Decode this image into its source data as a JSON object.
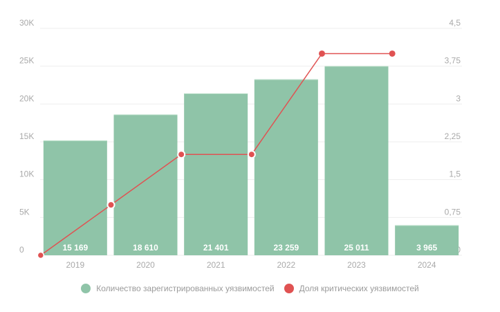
{
  "chart_data": {
    "type": "bar",
    "title": "",
    "categories": [
      "2019",
      "2020",
      "2021",
      "2022",
      "2023",
      "2024"
    ],
    "series": [
      {
        "name": "Количество зарегистрированных уязвимостей",
        "type": "bar",
        "axis": "left",
        "values": [
          15169,
          18610,
          21401,
          23259,
          25011,
          3965
        ],
        "labels": [
          "15 169",
          "18 610",
          "21 401",
          "23 259",
          "25 011",
          "3 965"
        ],
        "color": "#8fc4a8"
      },
      {
        "name": "Доля критических уязвимостей",
        "type": "line",
        "axis": "right",
        "values": [
          0,
          1,
          2,
          2,
          4,
          4
        ],
        "color": "#e05252"
      }
    ],
    "y_left": {
      "range": [
        0,
        30000
      ],
      "ticks": [
        "0",
        "5K",
        "10K",
        "15K",
        "20K",
        "25K",
        "30K"
      ]
    },
    "y_right": {
      "range": [
        0,
        4.5
      ],
      "ticks": [
        "0",
        "0,75",
        "1,5",
        "2,25",
        "3",
        "3,75",
        "4,5"
      ]
    },
    "grid": true,
    "legend_position": "bottom"
  }
}
